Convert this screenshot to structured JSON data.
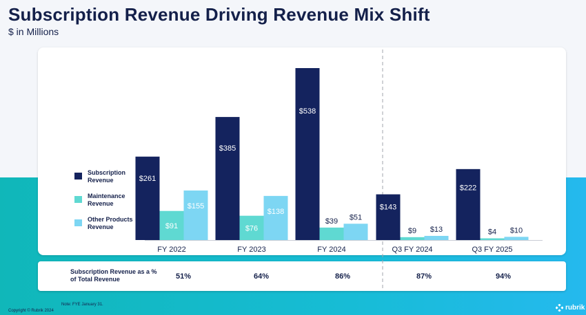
{
  "title": "Subscription Revenue Driving Revenue Mix Shift",
  "subtitle": "$ in Millions",
  "colors": {
    "subscription": "#14235e",
    "maintenance": "#5fd9d2",
    "other": "#7dd6f3"
  },
  "chart_data": {
    "type": "bar",
    "categories": [
      "FY 2022",
      "FY 2023",
      "FY 2024",
      "Q3 FY 2024",
      "Q3 FY 2025"
    ],
    "series": [
      {
        "name": "Subscription Revenue",
        "values": [
          261,
          385,
          538,
          143,
          222
        ],
        "labels": [
          "$261",
          "$385",
          "$538",
          "$143",
          "$222"
        ]
      },
      {
        "name": "Maintenance Revenue",
        "values": [
          91,
          76,
          39,
          9,
          4
        ],
        "labels": [
          "$91",
          "$76",
          "$39",
          "$9",
          "$4"
        ]
      },
      {
        "name": "Other Products Revenue",
        "values": [
          155,
          138,
          51,
          13,
          10
        ],
        "labels": [
          "$155",
          "$138",
          "$51",
          "$13",
          "$10"
        ]
      }
    ],
    "ylim": [
      0,
      538
    ],
    "grid": false,
    "legend_position": "left",
    "divider_after": "FY 2024"
  },
  "percent_row": {
    "label": "Subscription Revenue as a % of Total Revenue",
    "values": [
      "51%",
      "64%",
      "86%",
      "87%",
      "94%"
    ]
  },
  "note": "Note: FYE January 31.",
  "copyright": "Copyright © Rubrik 2024",
  "logo": {
    "text": "rubrik",
    "icon": "rubrik-logo-icon"
  }
}
